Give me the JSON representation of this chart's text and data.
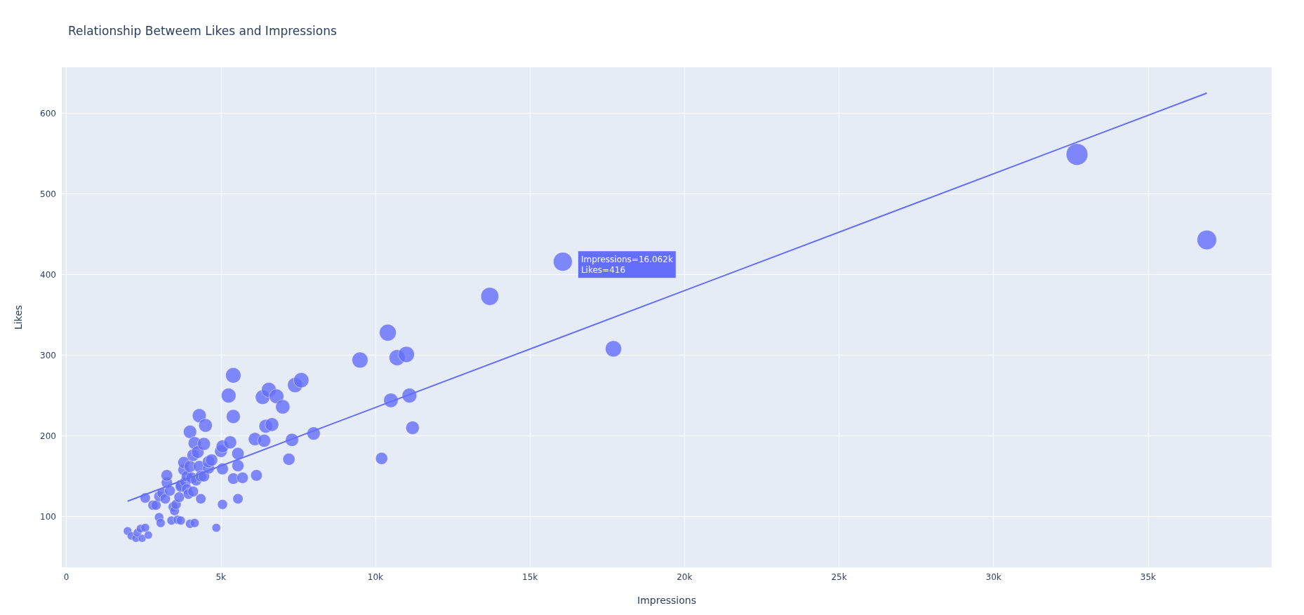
{
  "chart_data": {
    "type": "bubble",
    "title": "Relationship Betweem Likes and Impressions",
    "xlabel": "Impressions",
    "ylabel": "Likes",
    "xlim": [
      -150,
      39000
    ],
    "ylim": [
      37,
      657
    ],
    "xticks": [
      0,
      {
        "value": 5000,
        "label": "5k"
      },
      {
        "value": 10000,
        "label": "10k"
      },
      {
        "value": 15000,
        "label": "15k"
      },
      {
        "value": 20000,
        "label": "20k"
      },
      {
        "value": 25000,
        "label": "25k"
      },
      {
        "value": 30000,
        "label": "30k"
      },
      {
        "value": 35000,
        "label": "35k"
      }
    ],
    "yticks": [
      100,
      200,
      300,
      400,
      500,
      600
    ],
    "grid": true,
    "annotations": [
      {
        "text": "Impressions=16.062k\nLikes=416",
        "x": 16062,
        "y": 416
      }
    ],
    "series": [
      {
        "color": "#636efa",
        "marker": "circle",
        "x": [
          1980,
          2100,
          2250,
          2300,
          2400,
          2450,
          2550,
          2650,
          2550,
          2800,
          2900,
          3000,
          3050,
          3000,
          3100,
          3200,
          3250,
          3250,
          3350,
          3400,
          3450,
          3500,
          3550,
          3600,
          3650,
          3700,
          3700,
          3700,
          3800,
          3800,
          3850,
          3900,
          3900,
          3950,
          4000,
          4000,
          4000,
          4050,
          4100,
          4100,
          4150,
          4150,
          4200,
          4250,
          4300,
          4300,
          4350,
          4350,
          4450,
          4450,
          4500,
          4600,
          4600,
          4700,
          4850,
          5000,
          5050,
          5050,
          5050,
          5250,
          5300,
          5400,
          5400,
          5400,
          5550,
          5550,
          5550,
          5700,
          6100,
          6150,
          6350,
          6400,
          6450,
          6550,
          6650,
          6800,
          7000,
          7200,
          7300,
          7400,
          7600,
          8000,
          9500,
          10200,
          10400,
          10500,
          10700,
          11000,
          11100,
          11200,
          13700,
          16062,
          17700,
          32700,
          36900
        ],
        "values": [
          82,
          76,
          73,
          80,
          85,
          73,
          86,
          77,
          123,
          114,
          114,
          99,
          92,
          125,
          129,
          122,
          142,
          151,
          132,
          95,
          112,
          107,
          115,
          96,
          124,
          139,
          137,
          95,
          158,
          167,
          143,
          134,
          150,
          128,
          205,
          91,
          162,
          148,
          131,
          176,
          191,
          92,
          145,
          180,
          225,
          162,
          150,
          122,
          190,
          150,
          213,
          160,
          168,
          170,
          86,
          181,
          187,
          159,
          115,
          250,
          192,
          275,
          224,
          147,
          178,
          163,
          122,
          148,
          196,
          151,
          248,
          194,
          212,
          257,
          214,
          249,
          236,
          171,
          195,
          263,
          269,
          203,
          294,
          172,
          328,
          244,
          297,
          301,
          250,
          210,
          373,
          416,
          308,
          549,
          443
        ],
        "sizes": [
          0.15,
          0.14,
          0.13,
          0.15,
          0.15,
          0.13,
          0.16,
          0.14,
          0.22,
          0.21,
          0.21,
          0.18,
          0.17,
          0.23,
          0.23,
          0.22,
          0.26,
          0.28,
          0.24,
          0.17,
          0.2,
          0.19,
          0.21,
          0.17,
          0.23,
          0.25,
          0.25,
          0.17,
          0.29,
          0.3,
          0.26,
          0.24,
          0.27,
          0.23,
          0.37,
          0.17,
          0.3,
          0.27,
          0.24,
          0.32,
          0.35,
          0.17,
          0.26,
          0.33,
          0.41,
          0.3,
          0.27,
          0.22,
          0.35,
          0.27,
          0.39,
          0.29,
          0.31,
          0.31,
          0.16,
          0.33,
          0.34,
          0.29,
          0.21,
          0.46,
          0.35,
          0.5,
          0.41,
          0.27,
          0.32,
          0.3,
          0.22,
          0.27,
          0.36,
          0.28,
          0.45,
          0.35,
          0.39,
          0.47,
          0.39,
          0.45,
          0.43,
          0.31,
          0.36,
          0.48,
          0.49,
          0.37,
          0.54,
          0.31,
          0.6,
          0.44,
          0.54,
          0.55,
          0.46,
          0.38,
          0.68,
          0.76,
          0.56,
          1,
          0.81
        ]
      },
      {
        "type": "line",
        "marker": "none",
        "color": "#636efa",
        "x": [
          1980,
          36900
        ],
        "values": [
          119,
          625
        ]
      }
    ]
  }
}
